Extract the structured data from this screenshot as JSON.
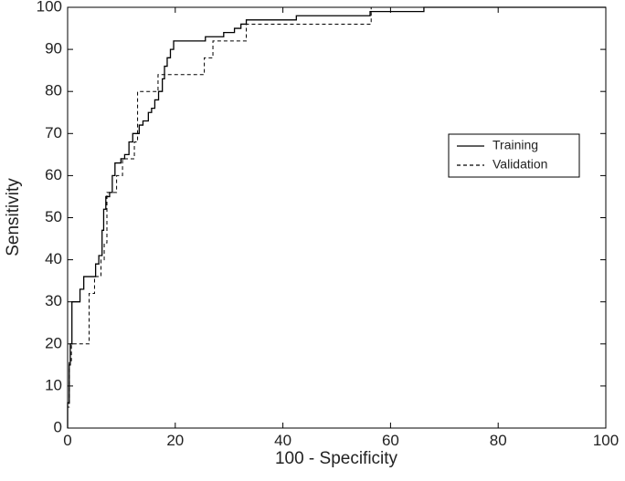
{
  "chart_data": {
    "type": "line",
    "title": "",
    "xlabel": "100 - Specificity",
    "ylabel": "Sensitivity",
    "xlim": [
      0,
      100
    ],
    "ylim": [
      0,
      100
    ],
    "xticks": [
      0,
      20,
      40,
      60,
      80,
      100
    ],
    "yticks": [
      0,
      10,
      20,
      30,
      40,
      50,
      60,
      70,
      80,
      90,
      100
    ],
    "grid": false,
    "legend_position": "right",
    "series": [
      {
        "name": "Training",
        "style": "solid",
        "color": "#000000",
        "points": [
          [
            0,
            0
          ],
          [
            0,
            6
          ],
          [
            0.3,
            6
          ],
          [
            0.3,
            15
          ],
          [
            0.5,
            15
          ],
          [
            0.5,
            20
          ],
          [
            0.8,
            20
          ],
          [
            0.8,
            30
          ],
          [
            2.3,
            30
          ],
          [
            2.3,
            33
          ],
          [
            3,
            33
          ],
          [
            3,
            36
          ],
          [
            5.2,
            36
          ],
          [
            5.2,
            39
          ],
          [
            5.8,
            39
          ],
          [
            5.8,
            41
          ],
          [
            6.4,
            41
          ],
          [
            6.4,
            47
          ],
          [
            6.7,
            47
          ],
          [
            6.7,
            52
          ],
          [
            7.1,
            52
          ],
          [
            7.1,
            55
          ],
          [
            7.8,
            55
          ],
          [
            7.8,
            56
          ],
          [
            8.3,
            56
          ],
          [
            8.3,
            60
          ],
          [
            8.8,
            60
          ],
          [
            8.8,
            63
          ],
          [
            9.9,
            63
          ],
          [
            9.9,
            64
          ],
          [
            10.6,
            64
          ],
          [
            10.6,
            65
          ],
          [
            11.4,
            65
          ],
          [
            11.4,
            68
          ],
          [
            12.1,
            68
          ],
          [
            12.1,
            70
          ],
          [
            13.3,
            70
          ],
          [
            13.3,
            72
          ],
          [
            14,
            72
          ],
          [
            14,
            73
          ],
          [
            15,
            73
          ],
          [
            15,
            75
          ],
          [
            15.6,
            75
          ],
          [
            15.6,
            76
          ],
          [
            16.2,
            76
          ],
          [
            16.2,
            78
          ],
          [
            16.9,
            78
          ],
          [
            16.9,
            80
          ],
          [
            17.6,
            80
          ],
          [
            17.6,
            83
          ],
          [
            18,
            83
          ],
          [
            18,
            86
          ],
          [
            18.5,
            86
          ],
          [
            18.5,
            88
          ],
          [
            19.1,
            88
          ],
          [
            19.1,
            90
          ],
          [
            19.7,
            90
          ],
          [
            19.7,
            92
          ],
          [
            25.6,
            92
          ],
          [
            25.6,
            93
          ],
          [
            29,
            93
          ],
          [
            29,
            94
          ],
          [
            31,
            94
          ],
          [
            31,
            95
          ],
          [
            32.2,
            95
          ],
          [
            32.2,
            96
          ],
          [
            33.2,
            96
          ],
          [
            33.2,
            97
          ],
          [
            42.5,
            97
          ],
          [
            42.5,
            98
          ],
          [
            56.2,
            98
          ],
          [
            56.2,
            99
          ],
          [
            66.2,
            99
          ],
          [
            66.2,
            100
          ],
          [
            100,
            100
          ]
        ]
      },
      {
        "name": "Validation",
        "style": "dashed",
        "color": "#000000",
        "points": [
          [
            0,
            0
          ],
          [
            0,
            5
          ],
          [
            0.3,
            5
          ],
          [
            0.3,
            16
          ],
          [
            0.7,
            16
          ],
          [
            0.7,
            20
          ],
          [
            4,
            20
          ],
          [
            4,
            32
          ],
          [
            5,
            32
          ],
          [
            5,
            36
          ],
          [
            6.2,
            36
          ],
          [
            6.2,
            40
          ],
          [
            6.8,
            40
          ],
          [
            6.8,
            44
          ],
          [
            7.3,
            44
          ],
          [
            7.3,
            56
          ],
          [
            9.1,
            56
          ],
          [
            9.1,
            60
          ],
          [
            10.2,
            60
          ],
          [
            10.2,
            64
          ],
          [
            12.4,
            64
          ],
          [
            12.4,
            68
          ],
          [
            13,
            68
          ],
          [
            13,
            80
          ],
          [
            16.8,
            80
          ],
          [
            16.8,
            84
          ],
          [
            25.4,
            84
          ],
          [
            25.4,
            88
          ],
          [
            27,
            88
          ],
          [
            27,
            92
          ],
          [
            33.2,
            92
          ],
          [
            33.2,
            96
          ],
          [
            56.4,
            96
          ],
          [
            56.4,
            100
          ],
          [
            100,
            100
          ]
        ]
      }
    ]
  }
}
